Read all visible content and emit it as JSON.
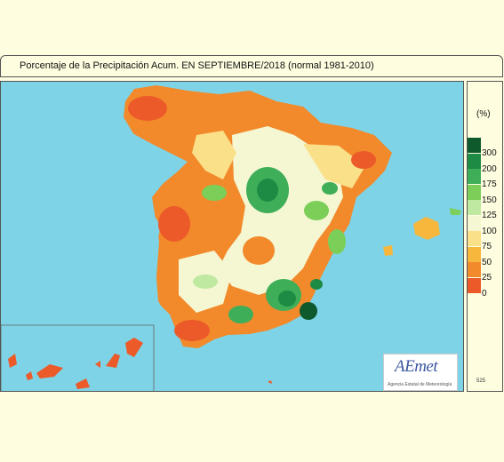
{
  "title": "Porcentaje de la Precipitación Acum. EN  SEPTIEMBRE/2018  (normal 1981-2010)",
  "legend": {
    "unit": "(%)",
    "classes": [
      {
        "label": "300",
        "color": "#0e5a2c"
      },
      {
        "label": "200",
        "color": "#1d8b44"
      },
      {
        "label": "175",
        "color": "#3fae59"
      },
      {
        "label": "150",
        "color": "#7bcf58"
      },
      {
        "label": "125",
        "color": "#bfe9a0"
      },
      {
        "label": "100",
        "color": "#f4f7d2"
      },
      {
        "label": "75",
        "color": "#fbe08a"
      },
      {
        "label": "50",
        "color": "#f7b63c"
      },
      {
        "label": "25",
        "color": "#f28a2b"
      },
      {
        "label": "0",
        "color": "#ec5a2a"
      }
    ]
  },
  "map_id": "525",
  "logo": {
    "name": "AEmet",
    "subtitle": "Agencia Estatal de Meteorología"
  },
  "colors": {
    "sea": "#7ed3e6",
    "background": "#fefde0"
  }
}
